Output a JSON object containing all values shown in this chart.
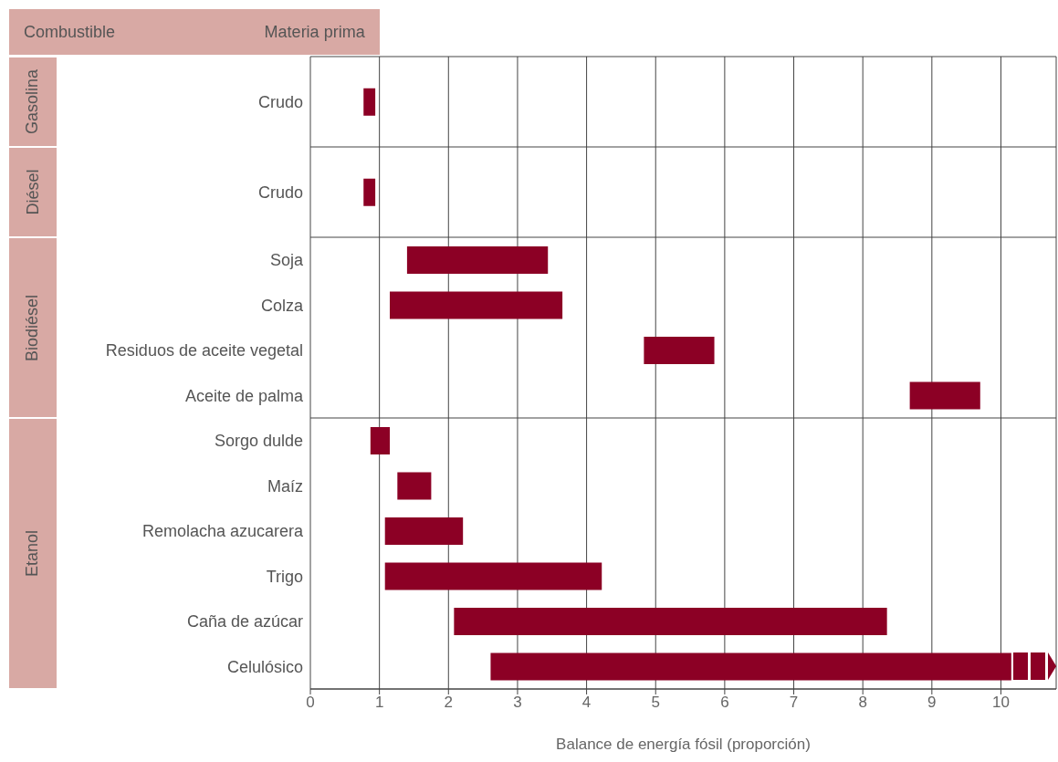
{
  "chart_data": {
    "type": "bar",
    "orientation": "horizontal",
    "color": "#8c0025",
    "categories": [
      "Crudo",
      "Crudo",
      "Soja",
      "Colza",
      "Residuos de aceite vegetal",
      "Aceite de palma",
      "Sorgo dulde",
      "Maíz",
      "Remolacha azucarera",
      "Trigo",
      "Caña de azúcar",
      "Celulósico"
    ],
    "base": [
      0.77,
      0.77,
      1.4,
      1.15,
      4.83,
      8.68,
      0.87,
      1.26,
      1.08,
      1.08,
      2.08,
      2.61
    ],
    "values": [
      0.17,
      0.17,
      2.04,
      2.5,
      1.02,
      1.02,
      0.28,
      0.49,
      1.13,
      3.14,
      6.27,
      7.54
    ],
    "xlim": [
      0,
      10.8
    ],
    "xticks": [
      0,
      1,
      2,
      3,
      4,
      5,
      6,
      7,
      8,
      9,
      10
    ],
    "grid": "x",
    "xlabel": "Balance de energía fósil (proporción)",
    "ylabel": "Materia prima",
    "annotations": [
      "Combustible",
      "Gasolina",
      "Diésel",
      "Biodiésel",
      "Etanol"
    ]
  }
}
